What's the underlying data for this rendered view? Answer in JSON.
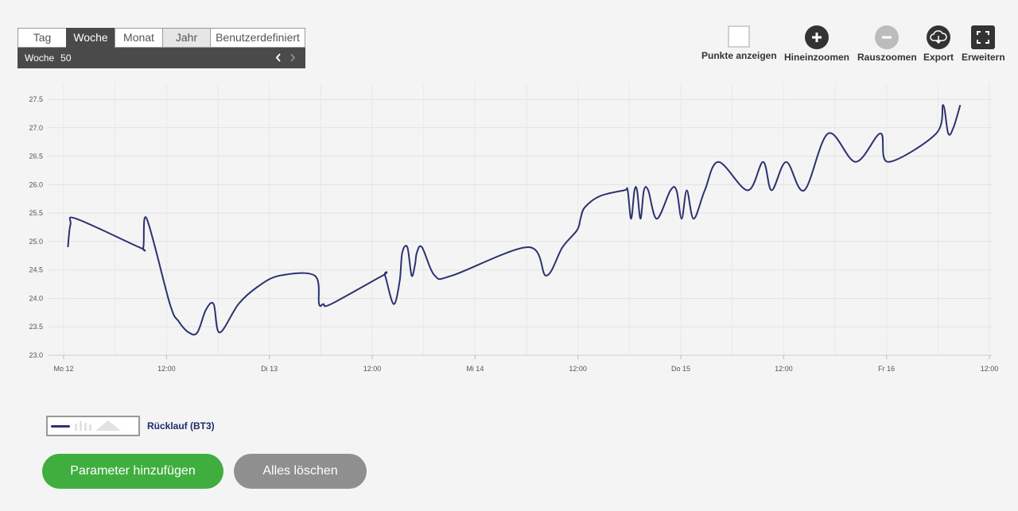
{
  "period": {
    "tabs": [
      {
        "label": "Tag",
        "active": false
      },
      {
        "label": "Woche",
        "active": true
      },
      {
        "label": "Monat",
        "active": false
      },
      {
        "label": "Jahr",
        "active": false
      },
      {
        "label": "Benutzerdefiniert",
        "active": false
      }
    ],
    "week_label": "Woche",
    "week_number": "50",
    "prev_icon": "chevron-left-icon",
    "next_icon": "chevron-right-icon"
  },
  "toolbar": {
    "show_points": "Punkte anzeigen",
    "zoom_in": "Hineinzoomen",
    "zoom_out": "Rauszoomen",
    "export": "Export",
    "expand": "Erweitern"
  },
  "legend": {
    "label": "Rücklauf (BT3)",
    "color": "#2b3270"
  },
  "buttons": {
    "add": "Parameter hinzufügen",
    "clear": "Alles löschen"
  },
  "colors": {
    "green": "#3fae3f",
    "grey": "#8f8f8f",
    "line": "#2b3270",
    "dark": "#4a4a4a"
  },
  "chart_data": {
    "type": "line",
    "ylim": [
      23.0,
      27.5
    ],
    "y_ticks": [
      "23.0",
      "23.5",
      "24.0",
      "24.5",
      "25.0",
      "25.5",
      "26.0",
      "26.5",
      "27.0",
      "27.5"
    ],
    "x_ticks": [
      {
        "label": "Mo 12",
        "h": 0
      },
      {
        "label": "12:00",
        "h": 12
      },
      {
        "label": "Di 13",
        "h": 24
      },
      {
        "label": "12:00",
        "h": 36
      },
      {
        "label": "Mi 14",
        "h": 48
      },
      {
        "label": "12:00",
        "h": 60
      },
      {
        "label": "Do 15",
        "h": 72
      },
      {
        "label": "12:00",
        "h": 84
      },
      {
        "label": "Fr 16",
        "h": 96
      },
      {
        "label": "12:00",
        "h": 108
      }
    ],
    "grid": true,
    "series": [
      {
        "name": "Rücklauf (BT3)",
        "x_hours": [
          0.5,
          0.8,
          1.5,
          8.8,
          9.3,
          9.7,
          12.4,
          13.4,
          14.6,
          15.6,
          16.6,
          17.5,
          18.2,
          20.4,
          22.6,
          25.2,
          29.3,
          29.8,
          30.3,
          31.2,
          37.2,
          37.5,
          38.5,
          39.2,
          39.5,
          40.1,
          40.6,
          41.0,
          41.2,
          41.8,
          43.3,
          45.3,
          54.2,
          56.3,
          58.2,
          59.9,
          60.3,
          60.8,
          62.6,
          65.4,
          65.8,
          66.2,
          66.6,
          66.9,
          67.3,
          67.7,
          68.2,
          69.2,
          70.8,
          71.5,
          72.1,
          72.7,
          73.5,
          74.8,
          76.4,
          79.8,
          81.6,
          82.6,
          84.3,
          86.4,
          89.2,
          92.4,
          95.3,
          96.2,
          101.8,
          102.6,
          103.2,
          103.8,
          104.6
        ],
        "values": [
          24.9,
          25.3,
          25.4,
          24.9,
          24.9,
          25.4,
          23.9,
          23.6,
          23.4,
          23.4,
          23.8,
          23.9,
          23.4,
          23.9,
          24.2,
          24.4,
          24.4,
          23.9,
          23.9,
          23.9,
          24.4,
          24.4,
          23.9,
          24.3,
          24.8,
          24.9,
          24.4,
          24.6,
          24.8,
          24.9,
          24.4,
          24.4,
          24.9,
          24.4,
          24.9,
          25.2,
          25.4,
          25.6,
          25.8,
          25.9,
          25.9,
          25.4,
          25.9,
          25.9,
          25.4,
          25.9,
          25.9,
          25.4,
          25.9,
          25.9,
          25.4,
          25.9,
          25.4,
          25.9,
          26.4,
          25.9,
          26.4,
          25.9,
          26.4,
          25.9,
          26.9,
          26.4,
          26.9,
          26.4,
          26.9,
          27.4,
          26.9,
          27.0,
          27.4
        ]
      }
    ]
  }
}
